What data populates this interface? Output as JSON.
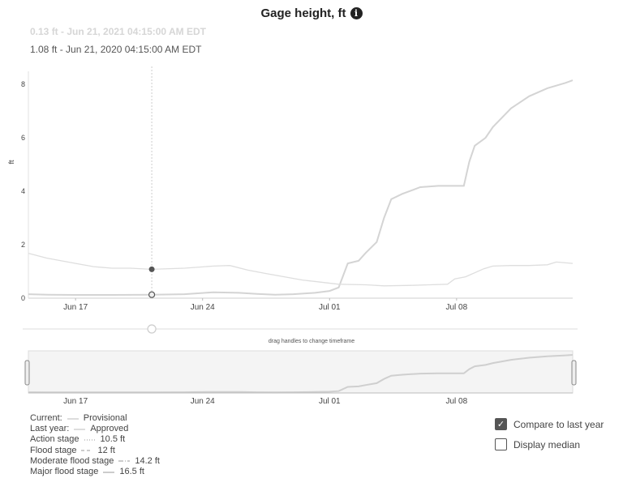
{
  "header": {
    "title": "Gage height, ft",
    "info_icon": "info-circle-icon"
  },
  "tooltip": {
    "current": "0.13 ft - Jun 21, 2021 04:15:00 AM EDT",
    "last_year": "1.08 ft - Jun 21, 2020 04:15:00 AM EDT"
  },
  "brush": {
    "hint": "drag handles to change timeframe"
  },
  "legend": {
    "current_label": "Current:",
    "current_value": "Provisional",
    "last_year_label": "Last year:",
    "last_year_value": "Approved",
    "action_label": "Action stage",
    "action_value": "10.5 ft",
    "flood_label": "Flood stage",
    "flood_value": "12 ft",
    "moderate_label": "Moderate flood stage",
    "moderate_value": "14.2 ft",
    "major_label": "Major flood stage",
    "major_value": "16.5 ft"
  },
  "controls": {
    "compare_label": "Compare to last year",
    "compare_checked": true,
    "median_label": "Display median",
    "median_checked": false
  },
  "chart_data": {
    "type": "line",
    "title": "Gage height, ft",
    "ylabel": "ft",
    "xlabel": "",
    "ylim": [
      0,
      8.5
    ],
    "yticks": [
      0,
      2,
      4,
      6,
      8
    ],
    "x_tick_labels": [
      "Jun 17",
      "Jun 24",
      "Jul 01",
      "Jul 08"
    ],
    "x_tick_days": [
      0,
      7,
      14,
      21
    ],
    "xlim_days": [
      -2.6,
      27.4
    ],
    "grid": false,
    "legend_position": "bottom-left",
    "cursor_day": 4.2,
    "series": [
      {
        "name": "Current",
        "color": "#d4d4d4",
        "points": [
          [
            -2.6,
            0.15
          ],
          [
            -1.5,
            0.13
          ],
          [
            0,
            0.12
          ],
          [
            2,
            0.12
          ],
          [
            4.2,
            0.13
          ],
          [
            6,
            0.15
          ],
          [
            7.6,
            0.22
          ],
          [
            9,
            0.2
          ],
          [
            10,
            0.16
          ],
          [
            11,
            0.13
          ],
          [
            12,
            0.15
          ],
          [
            13.2,
            0.2
          ],
          [
            14,
            0.27
          ],
          [
            14.5,
            0.4
          ],
          [
            15,
            1.3
          ],
          [
            15.6,
            1.4
          ],
          [
            16,
            1.7
          ],
          [
            16.6,
            2.1
          ],
          [
            17,
            3.0
          ],
          [
            17.4,
            3.7
          ],
          [
            18,
            3.9
          ],
          [
            19,
            4.15
          ],
          [
            20,
            4.2
          ],
          [
            21,
            4.2
          ],
          [
            21.4,
            4.2
          ],
          [
            21.7,
            5.1
          ],
          [
            22,
            5.7
          ],
          [
            22.6,
            6.0
          ],
          [
            23,
            6.4
          ],
          [
            24,
            7.1
          ],
          [
            25,
            7.55
          ],
          [
            26,
            7.85
          ],
          [
            27,
            8.05
          ],
          [
            27.4,
            8.15
          ]
        ]
      },
      {
        "name": "Last year",
        "color": "#dedede",
        "points": [
          [
            -2.6,
            1.68
          ],
          [
            -1.6,
            1.5
          ],
          [
            0,
            1.3
          ],
          [
            1,
            1.18
          ],
          [
            2,
            1.12
          ],
          [
            3,
            1.12
          ],
          [
            4.2,
            1.08
          ],
          [
            6,
            1.12
          ],
          [
            7.6,
            1.2
          ],
          [
            8.5,
            1.22
          ],
          [
            9.5,
            1.05
          ],
          [
            10.5,
            0.92
          ],
          [
            11.5,
            0.8
          ],
          [
            12.5,
            0.68
          ],
          [
            13.5,
            0.6
          ],
          [
            14.5,
            0.52
          ],
          [
            16,
            0.5
          ],
          [
            17,
            0.46
          ],
          [
            18.5,
            0.48
          ],
          [
            19.5,
            0.5
          ],
          [
            20.5,
            0.52
          ],
          [
            20.9,
            0.72
          ],
          [
            21.5,
            0.8
          ],
          [
            22.5,
            1.1
          ],
          [
            23,
            1.2
          ],
          [
            24,
            1.22
          ],
          [
            25,
            1.22
          ],
          [
            26,
            1.25
          ],
          [
            26.5,
            1.35
          ],
          [
            27.4,
            1.3
          ]
        ]
      }
    ]
  }
}
